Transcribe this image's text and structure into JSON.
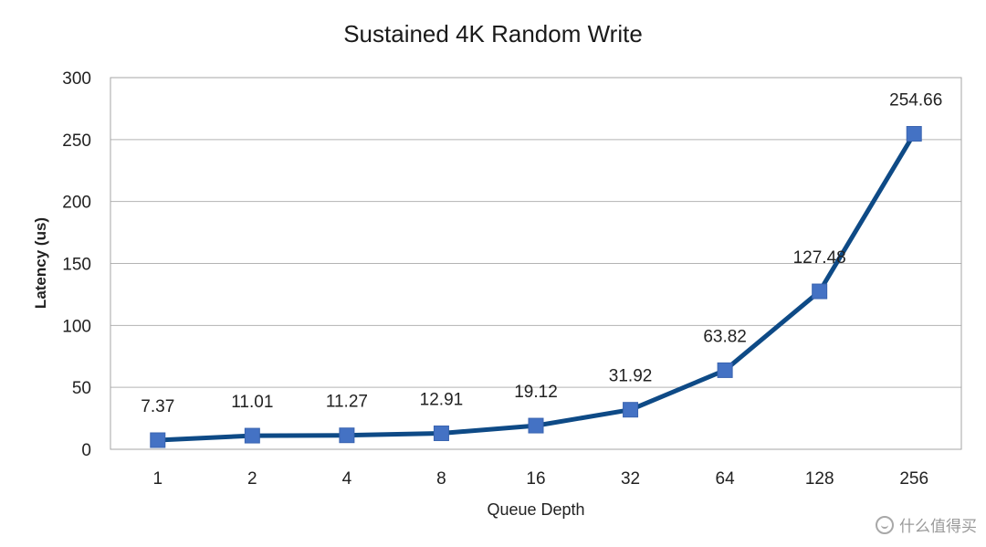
{
  "chart_data": {
    "type": "line",
    "title": "Sustained 4K Random Write",
    "xlabel": "Queue Depth",
    "ylabel": "Latency (us)",
    "categories": [
      "1",
      "2",
      "4",
      "8",
      "16",
      "32",
      "64",
      "128",
      "256"
    ],
    "series": [
      {
        "values": [
          7.37,
          11.01,
          11.27,
          12.91,
          19.12,
          31.92,
          63.82,
          127.48,
          254.66
        ],
        "data_labels": [
          "7.37",
          "11.01",
          "11.27",
          "12.91",
          "19.12",
          "31.92",
          "63.82",
          "127.48",
          "254.66"
        ],
        "line_color": "#0e4a86",
        "marker_color": "#4472c4",
        "marker": "square"
      }
    ],
    "ylim": [
      0,
      300
    ],
    "yticks": [
      0,
      50,
      100,
      150,
      200,
      250,
      300
    ],
    "grid": "horizontal",
    "legend": "none"
  },
  "watermark": {
    "text": "什么值得买"
  }
}
